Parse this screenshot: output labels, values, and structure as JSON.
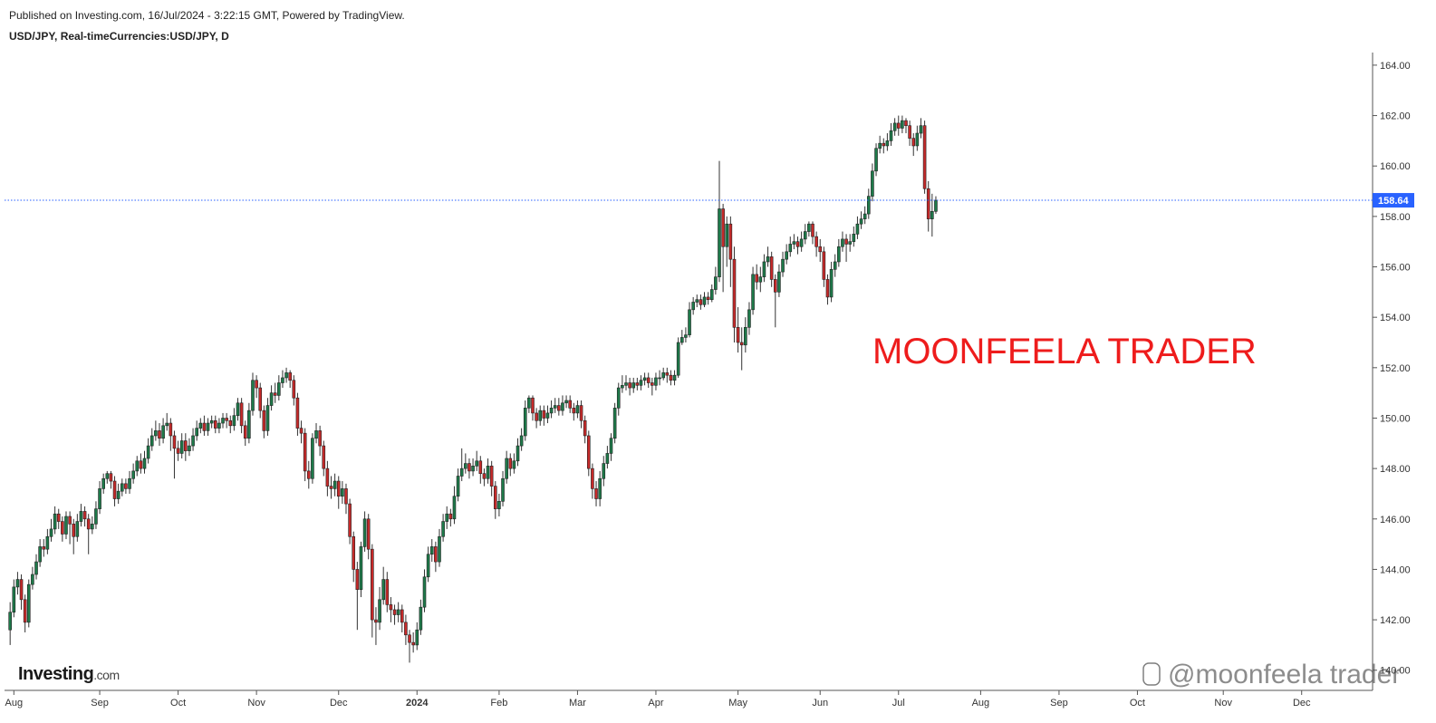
{
  "chart_data": {
    "type": "candlestick",
    "subtitle": "Published on Investing.com, 16/Jul/2024 - 3:22:15 GMT, Powered by TradingView.",
    "title": "USD/JPY, Real-timeCurrencies:USD/JPY, D",
    "annotation": "MOONFEELA TRADER",
    "watermark": "@moonfeela trader",
    "logo": [
      "Investing",
      ".com"
    ],
    "up_color": "#1e7a4a",
    "down_color": "#c62a2a",
    "last_price": 158.64,
    "last_price_color": "#2962ff",
    "open": [
      141.6,
      142.3,
      143.3,
      143.6,
      142.8,
      141.9,
      143.4,
      143.8,
      144.3,
      144.9,
      144.8,
      145.3,
      145.6,
      146.2,
      145.9,
      145.4,
      146.1,
      145.8,
      145.3,
      145.9,
      146.3,
      146.0,
      145.6,
      145.8,
      146.4,
      147.2,
      147.6,
      147.8,
      147.5,
      146.8,
      147.1,
      147.4,
      147.2,
      147.6,
      147.9,
      148.3,
      148.0,
      148.4,
      148.9,
      149.3,
      149.5,
      149.2,
      149.7,
      149.8,
      149.3,
      148.8,
      148.6,
      149.1,
      148.7,
      148.9,
      149.3,
      149.6,
      149.8,
      149.5,
      149.8,
      149.9,
      149.6,
      149.8,
      150.0,
      149.9,
      149.7,
      150.1,
      150.6,
      149.7,
      149.2,
      150.3,
      151.5,
      151.2,
      150.3,
      149.5,
      150.5,
      151.0,
      150.9,
      151.4,
      151.6,
      151.8,
      151.5,
      150.8,
      149.6,
      149.4,
      147.9,
      147.6,
      149.2,
      149.5,
      148.9,
      148.0,
      147.3,
      147.2,
      147.5,
      146.9,
      147.2,
      146.6,
      145.3,
      144.0,
      143.2,
      144.9,
      146.0,
      144.8,
      142.0,
      141.9,
      142.8,
      143.6,
      142.6,
      142.4,
      142.2,
      142.4,
      141.9,
      141.4,
      141.1,
      141.0,
      141.6,
      142.5,
      143.7,
      144.6,
      144.9,
      144.3,
      145.3,
      145.9,
      146.2,
      146.0,
      146.9,
      147.7,
      148.0,
      148.2,
      147.9,
      148.1,
      148.3,
      147.8,
      147.6,
      148.1,
      147.3,
      146.4,
      146.7,
      147.6,
      148.4,
      148.0,
      148.3,
      148.9,
      149.3,
      150.4,
      150.8,
      150.2,
      149.9,
      150.3,
      150.0,
      150.2,
      150.4,
      150.5,
      150.3,
      150.6,
      150.7,
      150.4,
      150.2,
      150.5,
      149.9,
      149.3,
      148.0,
      147.2,
      146.8,
      147.6,
      148.2,
      148.6,
      149.2,
      150.4,
      151.2,
      151.3,
      151.4,
      151.2,
      151.4,
      151.3,
      151.5,
      151.6,
      151.4,
      151.3,
      151.6,
      151.6,
      151.8,
      151.7,
      151.5,
      151.7,
      153.0,
      153.2,
      153.3,
      154.3,
      154.6,
      154.7,
      154.5,
      154.8,
      154.7,
      155.1,
      155.6,
      158.3,
      156.8,
      157.7,
      156.3,
      153.6,
      153.0,
      152.9,
      153.6,
      154.3,
      155.7,
      155.4,
      155.6,
      156.2,
      156.4,
      155.5,
      155.0,
      155.8,
      156.3,
      156.6,
      156.9,
      157.0,
      156.8,
      157.1,
      157.4,
      157.7,
      157.2,
      156.8,
      156.6,
      155.5,
      154.8,
      155.9,
      156.2,
      156.8,
      157.1,
      156.9,
      157.0,
      157.3,
      157.7,
      157.9,
      158.1,
      158.8,
      159.8,
      160.7,
      160.9,
      160.8,
      161.0,
      161.4,
      161.7,
      161.5,
      161.8,
      161.6,
      161.1,
      160.8,
      161.3,
      161.6,
      159.1,
      157.9,
      158.2
    ],
    "high": [
      142.7,
      143.6,
      143.9,
      143.8,
      143.0,
      143.6,
      144.1,
      144.6,
      145.2,
      145.2,
      145.6,
      146.0,
      146.5,
      146.4,
      146.1,
      146.3,
      146.3,
      146.0,
      146.2,
      146.6,
      146.5,
      146.2,
      146.1,
      146.7,
      147.5,
      147.8,
      147.9,
      147.9,
      147.7,
      147.4,
      147.6,
      147.6,
      147.9,
      148.2,
      148.5,
      148.6,
      148.7,
      149.2,
      149.6,
      149.9,
      149.8,
      150.0,
      150.2,
      150.0,
      149.5,
      149.1,
      149.4,
      149.4,
      149.2,
      149.6,
      149.9,
      150.0,
      150.1,
      150.0,
      150.1,
      150.1,
      150.0,
      150.2,
      150.2,
      150.1,
      150.4,
      150.8,
      150.8,
      149.9,
      150.6,
      151.8,
      151.7,
      151.4,
      150.5,
      150.8,
      151.3,
      151.4,
      151.7,
      151.9,
      152.0,
      151.9,
      151.7,
      151.0,
      149.9,
      149.6,
      148.3,
      149.4,
      149.8,
      149.7,
      149.1,
      148.3,
      147.7,
      147.8,
      147.7,
      147.5,
      147.4,
      146.8,
      145.5,
      144.3,
      145.1,
      146.3,
      146.2,
      145.0,
      142.5,
      143.3,
      144.1,
      143.9,
      142.9,
      142.6,
      142.7,
      142.6,
      142.2,
      141.6,
      141.5,
      141.9,
      142.8,
      144.0,
      144.9,
      145.2,
      145.1,
      145.6,
      146.2,
      146.5,
      146.4,
      147.3,
      148.0,
      148.8,
      148.6,
      148.4,
      148.4,
      148.7,
      148.5,
      148.0,
      148.4,
      148.3,
      147.5,
      147.0,
      147.9,
      148.7,
      148.6,
      148.6,
      149.2,
      149.6,
      150.7,
      150.9,
      150.9,
      150.4,
      150.5,
      150.5,
      150.5,
      150.7,
      150.8,
      150.8,
      150.9,
      150.9,
      150.9,
      150.6,
      150.7,
      150.7,
      150.1,
      149.5,
      148.2,
      147.5,
      147.9,
      148.5,
      148.9,
      149.4,
      150.6,
      151.4,
      151.7,
      151.7,
      151.6,
      151.6,
      151.6,
      151.7,
      151.8,
      151.8,
      151.6,
      151.8,
      151.9,
      152.0,
      152.0,
      151.9,
      151.9,
      153.2,
      153.5,
      153.6,
      154.6,
      154.8,
      154.9,
      154.9,
      155.0,
      155.0,
      155.3,
      156.0,
      160.2,
      158.5,
      158.0,
      158.0,
      156.8,
      154.4,
      153.6,
      154.0,
      154.6,
      156.0,
      156.1,
      156.0,
      156.5,
      156.8,
      156.6,
      155.7,
      156.1,
      156.6,
      156.9,
      157.2,
      157.3,
      157.2,
      157.4,
      157.7,
      157.8,
      157.8,
      157.4,
      157.1,
      156.8,
      155.7,
      156.2,
      156.5,
      157.1,
      157.4,
      157.3,
      157.3,
      157.6,
      158.0,
      158.2,
      158.4,
      159.1,
      160.1,
      160.9,
      161.2,
      161.1,
      161.3,
      161.7,
      161.9,
      162.0,
      162.0,
      161.9,
      161.8,
      161.3,
      161.6,
      161.9,
      161.8,
      159.4,
      158.9,
      158.8
    ],
    "low": [
      141.0,
      142.1,
      143.0,
      142.4,
      141.5,
      141.7,
      143.2,
      143.6,
      144.1,
      144.5,
      144.6,
      145.1,
      145.4,
      145.6,
      145.1,
      145.2,
      145.0,
      144.6,
      145.1,
      145.7,
      145.7,
      144.6,
      145.4,
      145.6,
      146.2,
      147.0,
      147.4,
      147.2,
      146.5,
      146.6,
      146.9,
      147.0,
      147.0,
      147.4,
      147.7,
      147.8,
      147.8,
      148.2,
      148.7,
      149.1,
      148.9,
      149.0,
      149.5,
      148.7,
      147.6,
      148.3,
      148.4,
      148.3,
      148.5,
      148.7,
      149.1,
      149.4,
      149.3,
      149.3,
      149.6,
      149.4,
      149.4,
      149.6,
      149.6,
      149.4,
      149.5,
      149.9,
      149.4,
      148.9,
      149.0,
      150.1,
      150.8,
      150.0,
      149.2,
      149.3,
      150.3,
      150.6,
      150.7,
      151.2,
      151.4,
      151.2,
      150.5,
      149.3,
      149.0,
      147.5,
      147.2,
      147.4,
      149.0,
      148.5,
      147.7,
      146.9,
      146.8,
      146.9,
      146.4,
      146.6,
      146.2,
      145.0,
      143.5,
      141.6,
      142.9,
      144.7,
      144.4,
      141.3,
      141.0,
      141.6,
      142.6,
      142.3,
      141.9,
      141.8,
      141.9,
      141.5,
      141.0,
      140.3,
      140.7,
      140.8,
      141.4,
      142.3,
      143.5,
      144.3,
      143.9,
      144.1,
      145.1,
      145.6,
      145.7,
      145.8,
      146.7,
      147.5,
      147.8,
      147.6,
      147.7,
      147.9,
      147.4,
      147.3,
      147.4,
      146.9,
      146.0,
      146.1,
      146.5,
      147.4,
      147.7,
      147.8,
      148.1,
      148.7,
      149.1,
      150.2,
      149.9,
      149.6,
      149.7,
      149.7,
      149.8,
      150.0,
      150.2,
      150.1,
      150.1,
      150.4,
      150.2,
      149.9,
      150.0,
      149.6,
      149.0,
      147.7,
      146.8,
      146.5,
      146.5,
      147.3,
      148.0,
      148.3,
      149.0,
      150.1,
      151.0,
      151.1,
      150.9,
      151.0,
      151.1,
      151.1,
      151.3,
      151.2,
      150.9,
      151.1,
      151.3,
      151.5,
      151.4,
      151.3,
      151.3,
      151.6,
      152.9,
      153.0,
      153.2,
      154.1,
      154.4,
      154.3,
      154.4,
      154.5,
      154.6,
      154.9,
      155.4,
      155.0,
      156.0,
      155.2,
      153.0,
      152.6,
      151.9,
      152.6,
      153.3,
      154.1,
      155.1,
      155.0,
      155.4,
      156.0,
      155.2,
      153.6,
      154.8,
      155.6,
      156.1,
      156.4,
      156.7,
      156.5,
      156.6,
      156.9,
      157.2,
      156.9,
      156.4,
      156.2,
      155.2,
      154.5,
      154.6,
      155.6,
      156.0,
      156.6,
      156.2,
      156.6,
      156.8,
      157.1,
      157.5,
      157.7,
      157.9,
      158.6,
      159.6,
      160.5,
      160.5,
      160.6,
      160.8,
      161.2,
      161.2,
      161.3,
      161.3,
      160.8,
      160.4,
      160.6,
      161.1,
      158.9,
      157.4,
      157.2,
      158.1
    ],
    "close": [
      142.3,
      143.3,
      143.6,
      142.8,
      141.9,
      143.4,
      143.8,
      144.3,
      144.9,
      144.8,
      145.3,
      145.6,
      146.2,
      145.9,
      145.4,
      146.1,
      145.8,
      145.3,
      145.9,
      146.3,
      146.0,
      145.6,
      145.8,
      146.4,
      147.2,
      147.6,
      147.8,
      147.5,
      146.8,
      147.1,
      147.4,
      147.2,
      147.6,
      147.9,
      148.3,
      148.0,
      148.4,
      148.9,
      149.3,
      149.5,
      149.2,
      149.7,
      149.8,
      149.3,
      148.8,
      148.6,
      149.1,
      148.7,
      148.9,
      149.3,
      149.6,
      149.8,
      149.5,
      149.8,
      149.9,
      149.6,
      149.8,
      150.0,
      149.9,
      149.7,
      150.1,
      150.6,
      149.7,
      149.2,
      150.3,
      151.5,
      151.2,
      150.3,
      149.5,
      150.5,
      151.0,
      150.9,
      151.4,
      151.6,
      151.8,
      151.5,
      150.8,
      149.6,
      149.4,
      147.9,
      147.6,
      149.2,
      149.5,
      148.9,
      148.0,
      147.3,
      147.2,
      147.5,
      146.9,
      147.2,
      146.6,
      145.3,
      144.0,
      143.2,
      144.9,
      146.0,
      144.8,
      142.0,
      141.9,
      142.8,
      143.6,
      142.6,
      142.4,
      142.2,
      142.4,
      141.9,
      141.4,
      141.1,
      141.0,
      141.6,
      142.5,
      143.7,
      144.6,
      144.9,
      144.3,
      145.3,
      145.9,
      146.2,
      146.0,
      146.9,
      147.7,
      148.0,
      148.2,
      147.9,
      148.1,
      148.3,
      147.8,
      147.6,
      148.1,
      147.3,
      146.4,
      146.7,
      147.6,
      148.4,
      148.0,
      148.3,
      148.9,
      149.3,
      150.4,
      150.8,
      150.2,
      149.9,
      150.3,
      150.0,
      150.2,
      150.4,
      150.5,
      150.3,
      150.6,
      150.7,
      150.4,
      150.2,
      150.5,
      149.9,
      149.3,
      148.0,
      147.2,
      146.8,
      147.6,
      148.2,
      148.6,
      149.2,
      150.4,
      151.2,
      151.3,
      151.4,
      151.2,
      151.4,
      151.3,
      151.5,
      151.6,
      151.4,
      151.3,
      151.6,
      151.6,
      151.8,
      151.7,
      151.5,
      151.7,
      153.0,
      153.2,
      153.3,
      154.3,
      154.6,
      154.7,
      154.5,
      154.8,
      154.7,
      155.1,
      155.6,
      158.3,
      156.8,
      157.7,
      156.3,
      153.6,
      153.0,
      152.9,
      153.6,
      154.3,
      155.7,
      155.4,
      155.6,
      156.2,
      156.4,
      155.5,
      155.0,
      155.8,
      156.3,
      156.6,
      156.9,
      157.0,
      156.8,
      157.1,
      157.4,
      157.7,
      157.2,
      156.8,
      156.6,
      155.5,
      154.8,
      155.9,
      156.2,
      156.8,
      157.1,
      156.9,
      157.0,
      157.3,
      157.7,
      157.9,
      158.1,
      158.8,
      159.8,
      160.7,
      160.9,
      160.8,
      161.0,
      161.4,
      161.7,
      161.5,
      161.8,
      161.6,
      161.1,
      160.8,
      161.3,
      161.6,
      159.1,
      157.9,
      158.2,
      158.64
    ],
    "xlim": [
      -1.5,
      365
    ],
    "xticks": [
      {
        "value": 1,
        "label": "Aug"
      },
      {
        "value": 24,
        "label": "Sep"
      },
      {
        "value": 45,
        "label": "Oct"
      },
      {
        "value": 66,
        "label": "Nov"
      },
      {
        "value": 88,
        "label": "Dec"
      },
      {
        "value": 109,
        "label": "2024"
      },
      {
        "value": 131,
        "label": "Feb"
      },
      {
        "value": 152,
        "label": "Mar"
      },
      {
        "value": 173,
        "label": "Apr"
      },
      {
        "value": 195,
        "label": "May"
      },
      {
        "value": 217,
        "label": "Jun"
      },
      {
        "value": 238,
        "label": "Jul"
      },
      {
        "value": 260,
        "label": "Aug"
      },
      {
        "value": 281,
        "label": "Sep"
      },
      {
        "value": 302,
        "label": "Oct"
      },
      {
        "value": 325,
        "label": "Nov"
      },
      {
        "value": 346,
        "label": "Dec"
      }
    ],
    "ylim": [
      139.2,
      164.5
    ],
    "yticks": [
      {
        "value": 140,
        "label": "140.00"
      },
      {
        "value": 142,
        "label": "142.00"
      },
      {
        "value": 144,
        "label": "144.00"
      },
      {
        "value": 146,
        "label": "146.00"
      },
      {
        "value": 148,
        "label": "148.00"
      },
      {
        "value": 150,
        "label": "150.00"
      },
      {
        "value": 152,
        "label": "152.00"
      },
      {
        "value": 154,
        "label": "154.00"
      },
      {
        "value": 156,
        "label": "156.00"
      },
      {
        "value": 158,
        "label": "158.00"
      },
      {
        "value": 160,
        "label": "160.00"
      },
      {
        "value": 162,
        "label": "162.00"
      },
      {
        "value": 164,
        "label": "164.00"
      }
    ]
  }
}
